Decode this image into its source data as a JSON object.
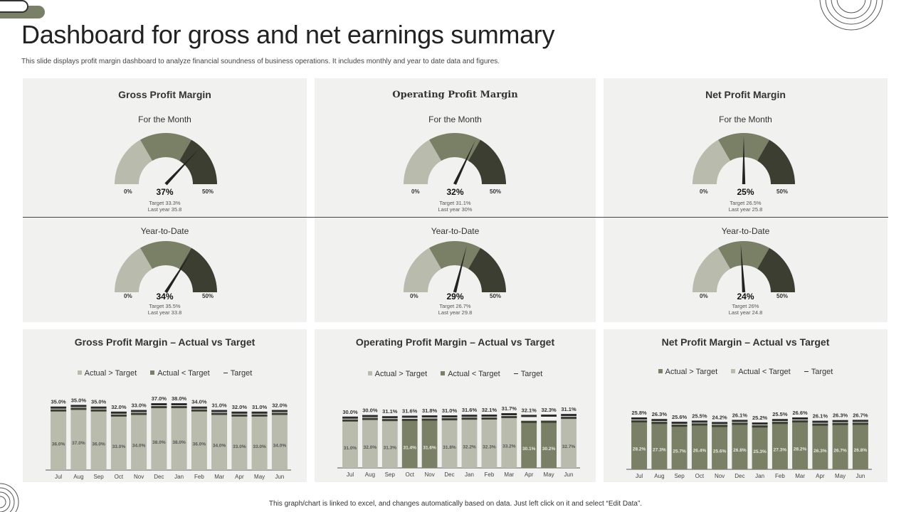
{
  "page": {
    "title": "Dashboard for gross and net earnings summary",
    "subtitle": "This slide displays profit margin dashboard to analyze financial soundness of business operations. It includes monthly and year to date data and figures.",
    "footer": "This graph/chart is linked to excel, and changes automatically based on data. Just left click on it and select “Edit Data”."
  },
  "colors": {
    "light": "#b9bbac",
    "mid": "#7a8066",
    "dark": "#3b3e30",
    "needle": "#222222",
    "panel_bg": "#f1f1ef"
  },
  "gauge_panels": [
    {
      "title": "Gross Profit Margin",
      "gauges": [
        {
          "label": "For the Month",
          "value": 37,
          "value_text": "37%",
          "target": "Target 33.3%",
          "last_year": "Last year 35.8",
          "min_label": "0%",
          "max_label": "50%"
        },
        {
          "label": "Year-to-Date",
          "value": 34,
          "value_text": "34%",
          "target": "Target 35.5%",
          "last_year": "Last year 33.8",
          "min_label": "0%",
          "max_label": "50%"
        }
      ]
    },
    {
      "title": "Operating Profit Margin",
      "gauges": [
        {
          "label": "For the Month",
          "value": 32,
          "value_text": "32%",
          "target": "Target 31.1%",
          "last_year": "Last year 30%",
          "min_label": "0%",
          "max_label": "50%"
        },
        {
          "label": "Year-to-Date",
          "value": 29,
          "value_text": "29%",
          "target": "Target 26.7%",
          "last_year": "Last year 29.8",
          "min_label": "0%",
          "max_label": "50%"
        }
      ]
    },
    {
      "title": "Net Profit Margin",
      "gauges": [
        {
          "label": "For the Month",
          "value": 25,
          "value_text": "25%",
          "target": "Target 26.5%",
          "last_year": "Last year 25.8",
          "min_label": "0%",
          "max_label": "50%"
        },
        {
          "label": "Year-to-Date",
          "value": 24,
          "value_text": "24%",
          "target": "Target 26%",
          "last_year": "Last year 24.8",
          "min_label": "0%",
          "max_label": "50%"
        }
      ]
    }
  ],
  "chart_data": [
    {
      "type": "bar",
      "title": "Gross Profit Margin – Actual vs Target",
      "legend": [
        "Actual > Target",
        "Actual < Target",
        "Target"
      ],
      "legend_colors": [
        "light",
        "mid",
        "dash"
      ],
      "categories": [
        "Jul",
        "Aug",
        "Sep",
        "Oct",
        "Nov",
        "Dec",
        "Jan",
        "Feb",
        "Mar",
        "Apr",
        "May",
        "Jun"
      ],
      "actual": [
        36.0,
        37.0,
        36.0,
        33.0,
        34.0,
        38.0,
        38.0,
        36.0,
        34.0,
        33.0,
        33.0,
        34.0
      ],
      "target": [
        35.0,
        35.0,
        35.0,
        32.0,
        33.0,
        37.0,
        38.0,
        34.0,
        31.0,
        32.0,
        31.0,
        32.0
      ],
      "actual_labels": [
        "36.0%",
        "37.0%",
        "36.0%",
        "33.0%",
        "34.0%",
        "38.0%",
        "38.0%",
        "36.0%",
        "34.0%",
        "33.0%",
        "33.0%",
        "34.0%"
      ],
      "target_labels": [
        "35.0%",
        "35.0%",
        "35.0%",
        "32.0%",
        "33.0%",
        "37.0%",
        "38.0%",
        "34.0%",
        "31.0%",
        "32.0%",
        "31.0%",
        "32.0%"
      ],
      "ylim": [
        0,
        40
      ]
    },
    {
      "type": "bar",
      "title": "Operating Profit Margin – Actual vs Target",
      "legend": [
        "Actual > Target",
        "Actual < Target",
        "Target"
      ],
      "legend_colors": [
        "light",
        "mid",
        "dash"
      ],
      "categories": [
        "Jul",
        "Aug",
        "Sep",
        "Oct",
        "Nov",
        "Dec",
        "Jan",
        "Feb",
        "Mar",
        "Apr",
        "May",
        "Jun"
      ],
      "actual": [
        31.0,
        32.0,
        31.3,
        31.4,
        31.6,
        31.8,
        32.2,
        32.3,
        33.2,
        30.1,
        30.2,
        32.7
      ],
      "target": [
        30.0,
        30.0,
        31.1,
        31.6,
        31.8,
        31.0,
        31.6,
        32.1,
        31.7,
        32.1,
        32.3,
        31.1
      ],
      "actual_labels": [
        "31.0%",
        "32.0%",
        "31.3%",
        "31.4%",
        "31.6%",
        "31.8%",
        "32.2%",
        "32.3%",
        "33.2%",
        "30.1%",
        "30.2%",
        "32.7%"
      ],
      "target_labels": [
        "30.0%",
        "30.0%",
        "31.1%",
        "31.6%",
        "31.8%",
        "31.0%",
        "31.6%",
        "32.1%",
        "31.7%",
        "32.1%",
        "32.3%",
        "31.1%"
      ],
      "ylim": [
        0,
        40
      ]
    },
    {
      "type": "bar",
      "title": "Net Profit Margin – Actual vs Target",
      "legend": [
        "Actual > Target",
        "Actual < Target",
        "Target"
      ],
      "legend_colors": [
        "mid",
        "light",
        "dash"
      ],
      "categories": [
        "Jul",
        "Aug",
        "Sep",
        "Oct",
        "Nov",
        "Dec",
        "Jan",
        "Feb",
        "Mar",
        "Apr",
        "May",
        "Jun"
      ],
      "actual": [
        28.2,
        27.3,
        25.7,
        26.4,
        25.6,
        26.8,
        25.3,
        27.3,
        28.2,
        26.3,
        26.7,
        26.8
      ],
      "target": [
        25.8,
        26.3,
        25.6,
        25.5,
        24.2,
        26.1,
        25.2,
        25.5,
        26.6,
        26.1,
        26.3,
        26.7
      ],
      "actual_labels": [
        "28.2%",
        "27.3%",
        "25.7%",
        "26.4%",
        "25.6%",
        "26.8%",
        "25.3%",
        "27.3%",
        "28.2%",
        "26.3%",
        "26.7%",
        "26.8%"
      ],
      "target_labels": [
        "25.8%",
        "26.3%",
        "25.6%",
        "25.5%",
        "24.2%",
        "26.1%",
        "25.2%",
        "25.5%",
        "26.6%",
        "26.1%",
        "26.3%",
        "26.7%"
      ],
      "ylim": [
        0,
        40
      ]
    }
  ]
}
